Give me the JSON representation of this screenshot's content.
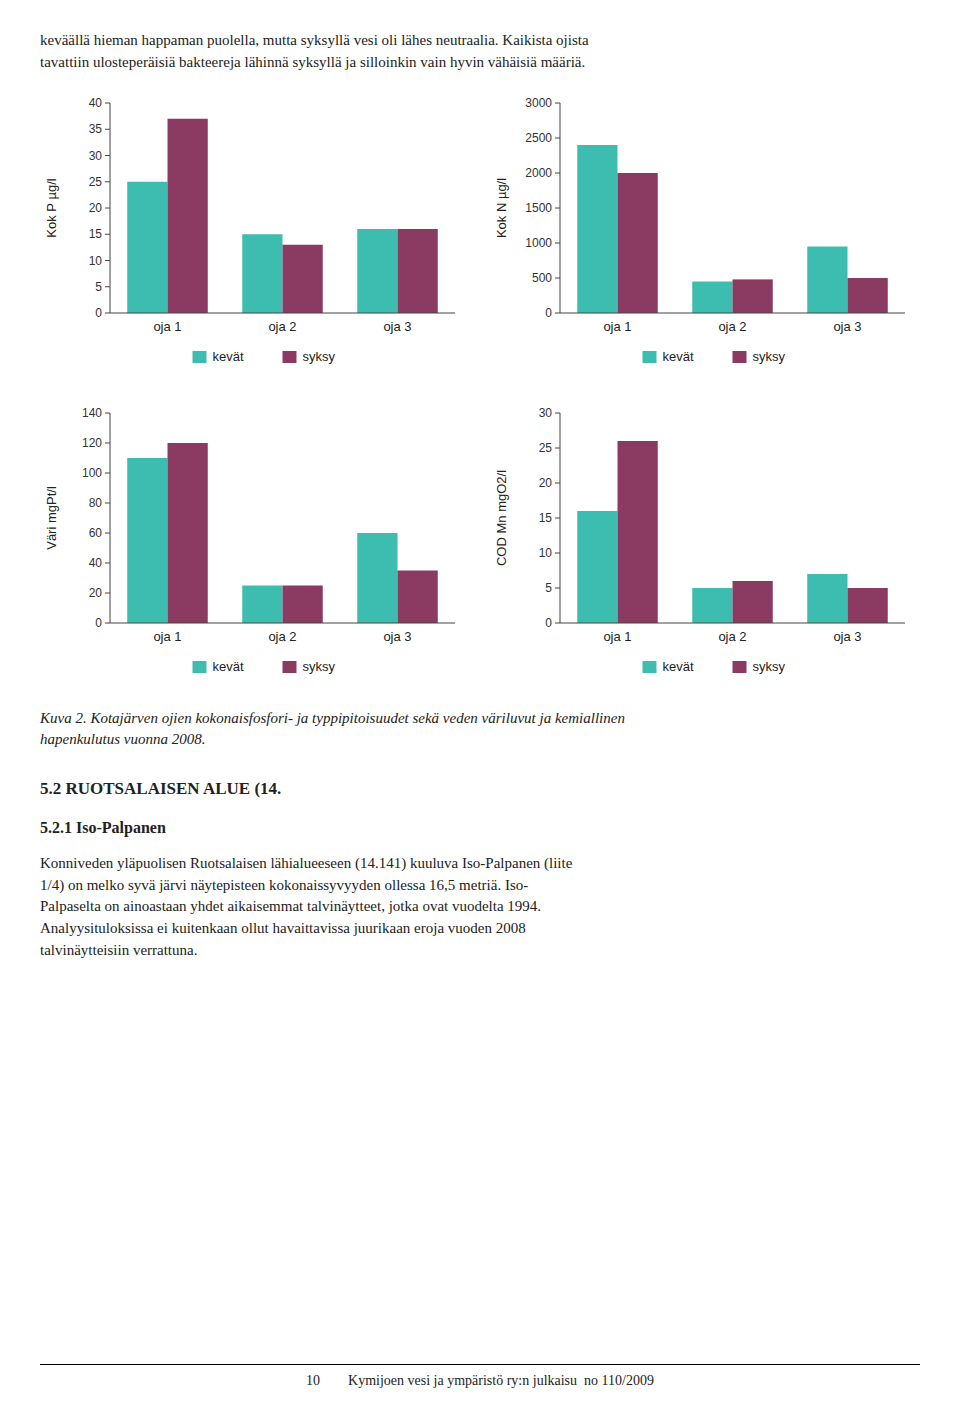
{
  "chart_data": [
    {
      "type": "bar",
      "ylabel": "Kok P µg/l",
      "categories": [
        "oja 1",
        "oja 2",
        "oja 3"
      ],
      "series": [
        {
          "name": "kevät",
          "color": "#3dbdb0",
          "values": [
            25,
            15,
            16
          ]
        },
        {
          "name": "syksy",
          "color": "#8b3a62",
          "values": [
            37,
            13,
            16
          ]
        }
      ],
      "ylim": [
        0,
        40
      ],
      "yticks": [
        0,
        5,
        10,
        15,
        20,
        25,
        30,
        35,
        40
      ],
      "grid": false,
      "legend": "bottom"
    },
    {
      "type": "bar",
      "ylabel": "Kok N µg/l",
      "categories": [
        "oja 1",
        "oja 2",
        "oja 3"
      ],
      "series": [
        {
          "name": "kevät",
          "color": "#3dbdb0",
          "values": [
            2400,
            450,
            950
          ]
        },
        {
          "name": "syksy",
          "color": "#8b3a62",
          "values": [
            2000,
            480,
            500
          ]
        }
      ],
      "ylim": [
        0,
        3000
      ],
      "yticks": [
        0,
        500,
        1000,
        1500,
        2000,
        2500,
        3000
      ],
      "grid": false,
      "legend": "bottom"
    },
    {
      "type": "bar",
      "ylabel": "Väri mgPt/l",
      "categories": [
        "oja 1",
        "oja 2",
        "oja 3"
      ],
      "series": [
        {
          "name": "kevät",
          "color": "#3dbdb0",
          "values": [
            110,
            25,
            60
          ]
        },
        {
          "name": "syksy",
          "color": "#8b3a62",
          "values": [
            120,
            25,
            35
          ]
        }
      ],
      "ylim": [
        0,
        140
      ],
      "yticks": [
        0,
        20,
        40,
        60,
        80,
        100,
        120,
        140
      ],
      "grid": false,
      "legend": "bottom"
    },
    {
      "type": "bar",
      "ylabel": "COD Mn mgO2/l",
      "categories": [
        "oja 1",
        "oja 2",
        "oja 3"
      ],
      "series": [
        {
          "name": "kevät",
          "color": "#3dbdb0",
          "values": [
            16,
            5,
            7
          ]
        },
        {
          "name": "syksy",
          "color": "#8b3a62",
          "values": [
            26,
            6,
            5
          ]
        }
      ],
      "ylim": [
        0,
        30
      ],
      "yticks": [
        0,
        5,
        10,
        15,
        20,
        25,
        30
      ],
      "grid": false,
      "legend": "bottom"
    }
  ],
  "intro": "keväällä hieman happaman puolella, mutta syksyllä vesi oli lähes neutraalia. Kaikista ojista\ntavattiin ulosteperäisiä bakteereja lähinnä syksyllä ja silloinkin vain hyvin vähäisiä määriä.",
  "caption": "Kuva 2. Kotajärven ojien kokonaisfosfori- ja typpipitoisuudet sekä veden väriluvut ja kemiallinen\nhapenkulutus vuonna 2008.",
  "section_header": "5.2 RUOTSALAISEN ALUE (14.",
  "section_title": "5.2.1 Iso-Palpanen",
  "body_text": "Konniveden yläpuolisen Ruotsalaisen lähialueeseen (14.141) kuuluva Iso-Palpanen (liite\n1/4) on melko syvä järvi näytepisteen kokonaissyvyyden ollessa 16,5 metriä. Iso-\nPalpaselta on ainoastaan yhdet aikaisemmat talvinäytteet, jotka ovat vuodelta 1994.\nAnalyysituloksissa ei kuitenkaan ollut havaittavissa juurikaan eroja vuoden 2008\ntalvinäytteisiin verrattuna.",
  "footer": "10        Kymijoen vesi ja ympäristö ry:n julkaisu  no 110/2009"
}
